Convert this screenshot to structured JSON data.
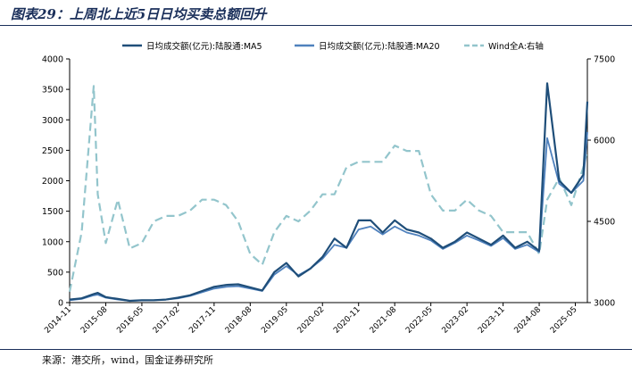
{
  "figure": {
    "title": "图表29：上周北上近5日日均买卖总额回升",
    "source": "来源：港交所，wind，国金证券研究所"
  },
  "chart_data": {
    "type": "line",
    "legend_position": "top",
    "grid": false,
    "x_ticks": [
      "2014-11",
      "2015-08",
      "2016-05",
      "2017-02",
      "2017-11",
      "2018-08",
      "2019-05",
      "2020-02",
      "2020-11",
      "2021-08",
      "2022-05",
      "2023-02",
      "2023-11",
      "2024-08",
      "2025-05"
    ],
    "y_left": {
      "ticks": [
        0,
        500,
        1000,
        1500,
        2000,
        2500,
        3000,
        3500,
        4000
      ],
      "range": [
        0,
        4000
      ]
    },
    "y_right": {
      "ticks": [
        3000,
        4500,
        6000,
        7500
      ],
      "range": [
        3000,
        7500
      ]
    },
    "colors": {
      "ma5": "#1f4e79",
      "ma20": "#4f81bd",
      "wind": "#93c5cc"
    },
    "x": [
      "2014-11",
      "2015-02",
      "2015-05",
      "2015-06",
      "2015-08",
      "2015-11",
      "2016-02",
      "2016-05",
      "2016-08",
      "2016-11",
      "2017-02",
      "2017-05",
      "2017-08",
      "2017-11",
      "2018-02",
      "2018-05",
      "2018-08",
      "2018-11",
      "2019-02",
      "2019-05",
      "2019-08",
      "2019-11",
      "2020-02",
      "2020-05",
      "2020-08",
      "2020-11",
      "2021-02",
      "2021-05",
      "2021-08",
      "2021-11",
      "2022-02",
      "2022-05",
      "2022-08",
      "2022-11",
      "2023-02",
      "2023-05",
      "2023-08",
      "2023-11",
      "2024-02",
      "2024-05",
      "2024-08",
      "2024-10",
      "2025-01",
      "2025-04",
      "2025-07",
      "2025-08"
    ],
    "series": [
      {
        "name": "日均成交额(亿元):陆股通:MA5",
        "axis": "left",
        "style": "solid",
        "values": [
          50,
          70,
          140,
          160,
          90,
          60,
          30,
          40,
          40,
          50,
          80,
          120,
          190,
          260,
          290,
          300,
          250,
          200,
          500,
          650,
          430,
          560,
          750,
          1050,
          900,
          1350,
          1350,
          1150,
          1350,
          1200,
          1150,
          1050,
          900,
          1000,
          1150,
          1050,
          950,
          1100,
          900,
          1000,
          850,
          3600,
          2000,
          1800,
          2100,
          3300
        ]
      },
      {
        "name": "日均成交额(亿元):陆股通:MA20",
        "axis": "left",
        "style": "solid",
        "values": [
          40,
          60,
          120,
          130,
          80,
          50,
          30,
          35,
          40,
          50,
          70,
          110,
          170,
          230,
          260,
          270,
          230,
          190,
          460,
          600,
          450,
          560,
          720,
          950,
          900,
          1200,
          1250,
          1120,
          1250,
          1150,
          1100,
          1020,
          880,
          980,
          1100,
          1020,
          930,
          1060,
          880,
          950,
          830,
          2700,
          1950,
          1800,
          2000,
          2800
        ]
      },
      {
        "name": "Wind全A:右轴",
        "axis": "right",
        "style": "dashed",
        "values": [
          3200,
          4300,
          7000,
          5000,
          4100,
          4900,
          4000,
          4100,
          4500,
          4600,
          4600,
          4700,
          4900,
          4900,
          4800,
          4500,
          3900,
          3700,
          4300,
          4600,
          4500,
          4700,
          5000,
          5000,
          5500,
          5600,
          5600,
          5600,
          5900,
          5800,
          5800,
          5000,
          4700,
          4700,
          4900,
          4700,
          4600,
          4300,
          4300,
          4300,
          3900,
          4900,
          5300,
          4800,
          5500,
          5800
        ]
      }
    ]
  }
}
